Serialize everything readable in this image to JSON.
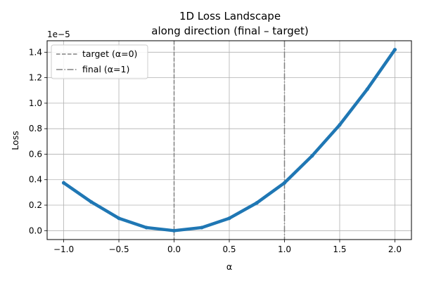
{
  "chart_data": {
    "type": "line",
    "title": "1D Loss Landscape",
    "subtitle": "along direction (final – target)",
    "xlabel": "α",
    "ylabel": "Loss",
    "y_offset_label": "1e−5",
    "xlim": [
      -1.15,
      2.15
    ],
    "ylim": [
      -0.07,
      1.49
    ],
    "y_scale_factor": 1e-05,
    "x_ticks": [
      -1.0,
      -0.5,
      0.0,
      0.5,
      1.0,
      1.5,
      2.0
    ],
    "x_tick_labels": [
      "−1.0",
      "−0.5",
      "0.0",
      "0.5",
      "1.0",
      "1.5",
      "2.0"
    ],
    "y_ticks": [
      0.0,
      0.2,
      0.4,
      0.6,
      0.8,
      1.0,
      1.2,
      1.4
    ],
    "y_tick_labels": [
      "0.0",
      "0.2",
      "0.4",
      "0.6",
      "0.8",
      "1.0",
      "1.2",
      "1.4"
    ],
    "grid": true,
    "legend_position": "top-left",
    "series": [
      {
        "color": "#1f77b4",
        "x": [
          -1.0,
          -0.75,
          -0.5,
          -0.25,
          0.0,
          0.25,
          0.5,
          0.75,
          1.0,
          1.25,
          1.5,
          1.75,
          2.0
        ],
        "y": [
          0.375,
          0.225,
          0.097,
          0.024,
          0.0,
          0.024,
          0.097,
          0.218,
          0.375,
          0.587,
          0.83,
          1.11,
          1.42
        ]
      }
    ],
    "vlines": [
      {
        "x": 0.0,
        "label": "target (α=0)",
        "style": "dashed",
        "color": "#808080"
      },
      {
        "x": 1.0,
        "label": "final  (α=1)",
        "style": "dashdot",
        "color": "#808080"
      }
    ]
  }
}
